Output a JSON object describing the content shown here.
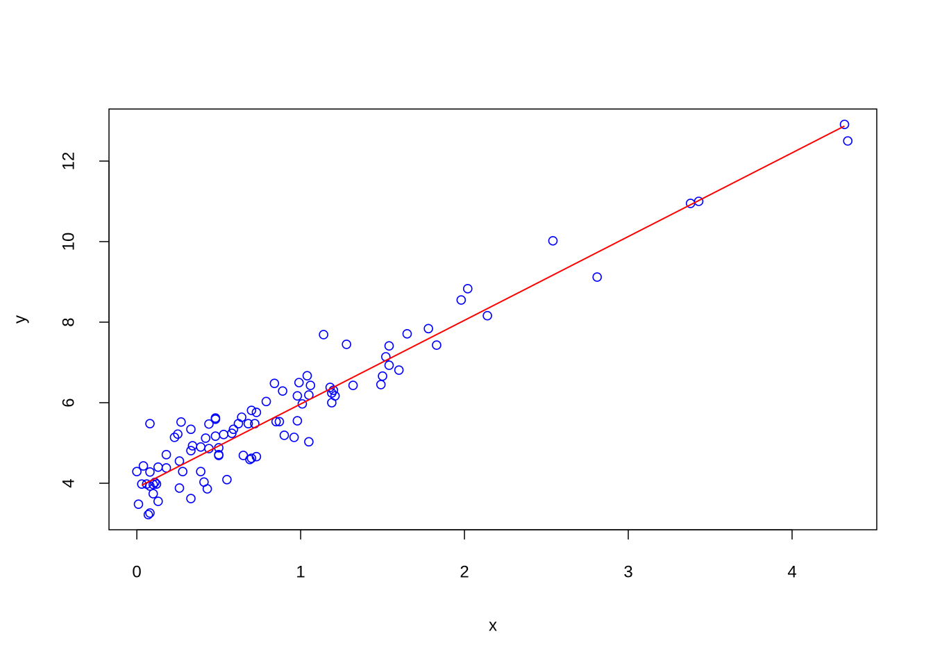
{
  "chart_data": {
    "type": "scatter",
    "x_label": "x",
    "y_label": "y",
    "xlim": [
      -0.17,
      4.517
    ],
    "ylim": [
      2.845,
      13.293
    ],
    "xticks": [
      0,
      1,
      2,
      3,
      4
    ],
    "yticks": [
      4,
      6,
      8,
      10,
      12
    ],
    "series": [
      {
        "style": "points",
        "color": "#0000ff",
        "x": [
          4.32,
          4.34,
          3.38,
          3.43,
          2.54,
          2.81,
          2.02,
          1.98,
          2.14,
          1.78,
          1.65,
          1.14,
          1.28,
          1.83,
          1.54,
          1.52,
          1.54,
          1.6,
          1.5,
          1.49,
          1.32,
          1.04,
          1.06,
          0.99,
          0.84,
          0.89,
          1.05,
          0.98,
          1.18,
          1.2,
          1.19,
          1.21,
          1.19,
          1.01,
          0.79,
          0.7,
          0.73,
          0.64,
          0.48,
          0.48,
          0.27,
          0.08,
          0.44,
          0.62,
          0.68,
          0.72,
          0.85,
          0.87,
          0.98,
          0.33,
          0.59,
          0.58,
          0.53,
          0.25,
          0.23,
          0.42,
          0.48,
          0.9,
          0.96,
          1.05,
          0.34,
          0.39,
          0.33,
          0.44,
          0.5,
          0.5,
          0.5,
          0.18,
          0.26,
          0.65,
          0.7,
          0.73,
          0.69,
          0.04,
          0.13,
          0.18,
          0.0,
          0.08,
          0.28,
          0.39,
          0.55,
          0.41,
          0.03,
          0.06,
          0.11,
          0.12,
          0.1,
          0.08,
          0.43,
          0.26,
          0.1,
          0.33,
          0.13,
          0.01,
          0.08,
          0.07
        ],
        "values": [
          12.91,
          12.5,
          10.95,
          11.0,
          10.02,
          9.12,
          8.83,
          8.55,
          8.16,
          7.84,
          7.71,
          7.69,
          7.45,
          7.43,
          7.41,
          7.14,
          6.93,
          6.81,
          6.66,
          6.45,
          6.43,
          6.67,
          6.43,
          6.5,
          6.48,
          6.29,
          6.19,
          6.17,
          6.38,
          6.31,
          6.24,
          6.17,
          6.0,
          5.97,
          6.03,
          5.81,
          5.76,
          5.64,
          5.62,
          5.59,
          5.52,
          5.48,
          5.47,
          5.48,
          5.48,
          5.48,
          5.53,
          5.53,
          5.55,
          5.34,
          5.34,
          5.24,
          5.21,
          5.22,
          5.14,
          5.12,
          5.17,
          5.19,
          5.14,
          5.03,
          4.93,
          4.9,
          4.81,
          4.86,
          4.88,
          4.71,
          4.69,
          4.71,
          4.55,
          4.69,
          4.62,
          4.66,
          4.59,
          4.43,
          4.4,
          4.38,
          4.29,
          4.28,
          4.29,
          4.29,
          4.09,
          4.03,
          3.98,
          3.98,
          4.02,
          3.98,
          3.97,
          3.93,
          3.86,
          3.88,
          3.74,
          3.62,
          3.55,
          3.48,
          3.26,
          3.22
        ]
      },
      {
        "style": "line",
        "color": "#ff0000",
        "x": [
          0.03,
          4.32
        ],
        "values": [
          3.95,
          12.87
        ]
      }
    ]
  }
}
